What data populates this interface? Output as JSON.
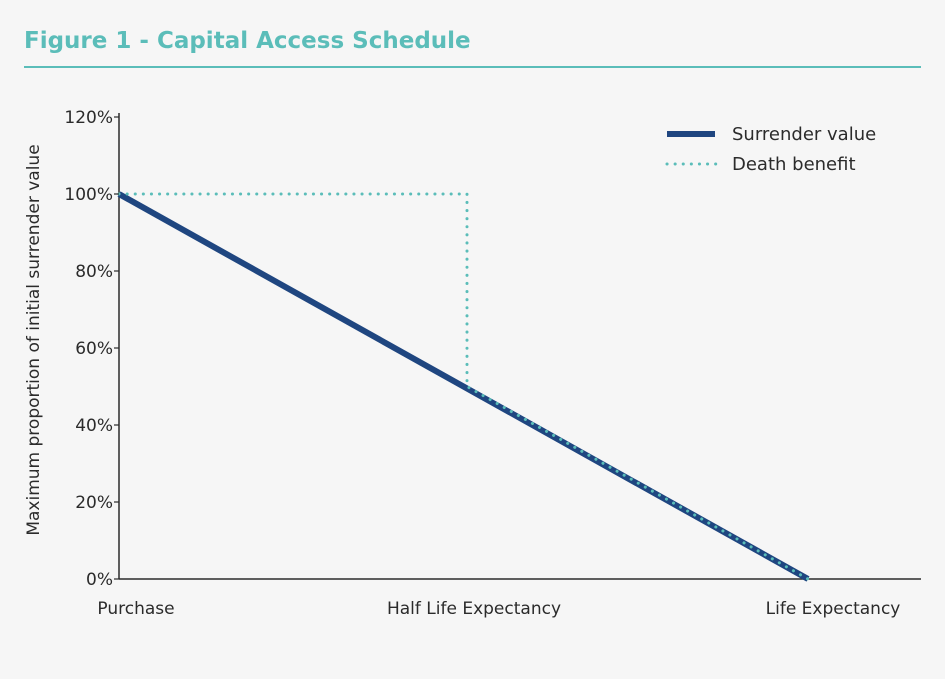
{
  "figure": {
    "title": "Figure 1 - Capital Access Schedule"
  },
  "colors": {
    "title": "#5bbdb9",
    "surrender": "#1f4680",
    "death": "#5bbdb9",
    "axis": "#2b2b2b",
    "background": "#f6f6f6"
  },
  "chart_data": {
    "type": "line",
    "title": "Figure 1 - Capital Access Schedule",
    "xlabel": "",
    "ylabel": "Maximum proportion of initial surrender value",
    "categories": [
      "Purchase",
      "Half Life Expectancy",
      "Life Expectancy"
    ],
    "y_ticks": [
      "0%",
      "20%",
      "40%",
      "60%",
      "80%",
      "100%",
      "120%"
    ],
    "y_tick_values": [
      0,
      20,
      40,
      60,
      80,
      100,
      120
    ],
    "ylim": [
      0,
      120
    ],
    "grid": false,
    "legend_position": "top-right",
    "series": [
      {
        "name": "Surrender value",
        "style": "solid",
        "x": [
          "Purchase",
          "Life Expectancy"
        ],
        "y": [
          100,
          0
        ]
      },
      {
        "name": "Death benefit",
        "style": "dotted",
        "x": [
          "Purchase",
          "Half Life Expectancy",
          "Half Life Expectancy",
          "Life Expectancy"
        ],
        "y": [
          100,
          100,
          50,
          0
        ]
      }
    ]
  }
}
